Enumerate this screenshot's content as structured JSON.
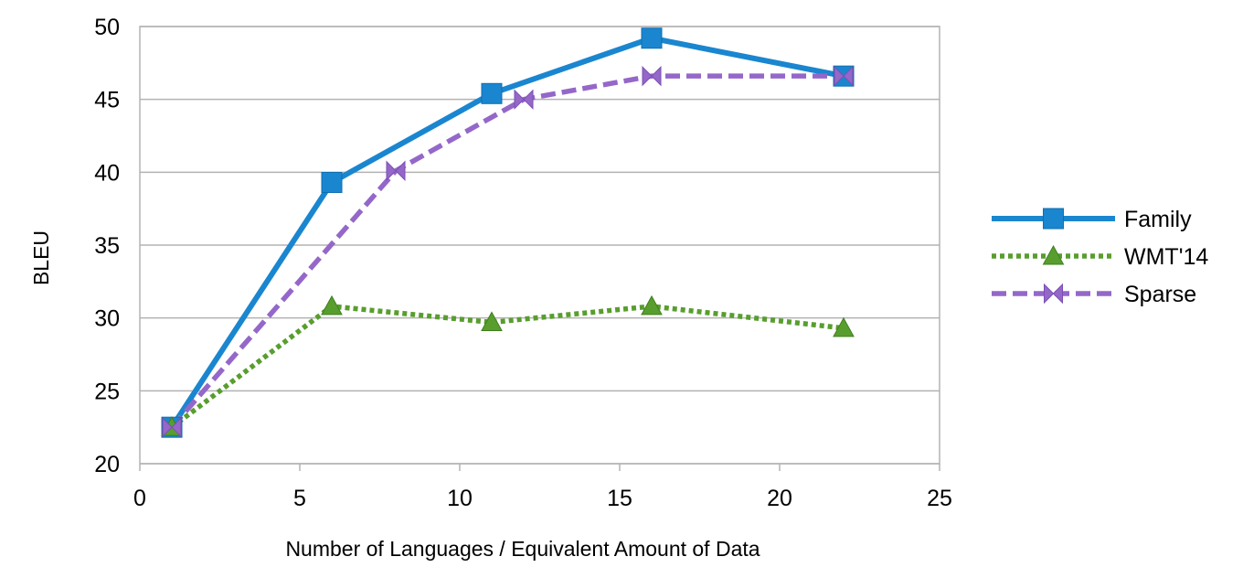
{
  "chart_data": {
    "type": "line",
    "title": "",
    "xlabel": "Number of Languages / Equivalent Amount of Data",
    "ylabel": "BLEU",
    "xlim": [
      0,
      25
    ],
    "ylim": [
      20,
      50
    ],
    "xticks": [
      0,
      5,
      10,
      15,
      20,
      25
    ],
    "yticks": [
      20,
      25,
      30,
      35,
      40,
      45,
      50
    ],
    "xtick_labels": [
      "0",
      "5",
      "10",
      "15",
      "20",
      "25"
    ],
    "ytick_labels": [
      "20",
      "25",
      "30",
      "35",
      "40",
      "45",
      "50"
    ],
    "grid": "horizontal",
    "legend_position": "right",
    "series": [
      {
        "name": "Family",
        "color": "#1a86cf",
        "line_style": "solid",
        "marker": "square",
        "x": [
          1,
          6,
          11,
          16,
          22
        ],
        "y": [
          22.5,
          39.3,
          45.4,
          49.2,
          46.6
        ]
      },
      {
        "name": "WMT'14",
        "color": "#589e2e",
        "line_style": "dotted",
        "marker": "triangle",
        "x": [
          1,
          6,
          11,
          16,
          22
        ],
        "y": [
          22.5,
          30.8,
          29.7,
          30.8,
          29.3
        ]
      },
      {
        "name": "Sparse",
        "color": "#9467c9",
        "line_style": "dashed",
        "marker": "bowtie",
        "x": [
          1,
          8,
          12,
          16,
          22
        ],
        "y": [
          22.5,
          40.1,
          45.0,
          46.6,
          46.6
        ]
      }
    ]
  }
}
